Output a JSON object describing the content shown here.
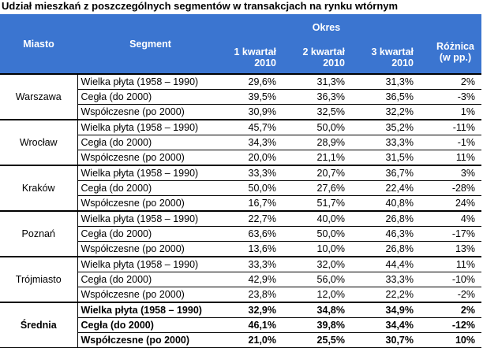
{
  "title": "Udział mieszkań z poszczególnych segmentów w transakcjach na rynku wtórnym",
  "header": {
    "miasto": "Miasto",
    "segment": "Segment",
    "okres": "Okres",
    "q1": [
      "1 kwartał",
      "2010"
    ],
    "q2": [
      "2 kwartał",
      "2010"
    ],
    "q3": [
      "3 kwartał",
      "2010"
    ],
    "roznica": [
      "Różnica",
      "(w pp.)"
    ]
  },
  "groups": [
    {
      "city": "Warszawa",
      "rows": [
        {
          "segment": "Wielka płyta (1958 – 1990)",
          "q1": "29,6%",
          "q2": "31,3%",
          "q3": "31,3%",
          "diff": "2%"
        },
        {
          "segment": "Cegła (do 2000)",
          "q1": "39,5%",
          "q2": "36,3%",
          "q3": "36,5%",
          "diff": "-3%"
        },
        {
          "segment": "Współczesne (po 2000)",
          "q1": "30,9%",
          "q2": "32,5%",
          "q3": "32,2%",
          "diff": "1%"
        }
      ]
    },
    {
      "city": "Wrocław",
      "rows": [
        {
          "segment": "Wielka płyta (1958 – 1990)",
          "q1": "45,7%",
          "q2": "50,0%",
          "q3": "35,2%",
          "diff": "-11%"
        },
        {
          "segment": "Cegła (do 2000)",
          "q1": "34,3%",
          "q2": "28,9%",
          "q3": "33,3%",
          "diff": "-1%"
        },
        {
          "segment": "Współczesne (po 2000)",
          "q1": "20,0%",
          "q2": "21,1%",
          "q3": "31,5%",
          "diff": "11%"
        }
      ]
    },
    {
      "city": "Kraków",
      "rows": [
        {
          "segment": "Wielka płyta (1958 – 1990)",
          "q1": "33,3%",
          "q2": "20,7%",
          "q3": "36,7%",
          "diff": "3%"
        },
        {
          "segment": "Cegła (do 2000)",
          "q1": "50,0%",
          "q2": "27,6%",
          "q3": "22,4%",
          "diff": "-28%"
        },
        {
          "segment": "Współczesne (po 2000)",
          "q1": "16,7%",
          "q2": "51,7%",
          "q3": "40,8%",
          "diff": "24%"
        }
      ]
    },
    {
      "city": "Poznań",
      "rows": [
        {
          "segment": "Wielka płyta (1958 – 1990)",
          "q1": "22,7%",
          "q2": "40,0%",
          "q3": "26,8%",
          "diff": "4%"
        },
        {
          "segment": "Cegła (do 2000)",
          "q1": "63,6%",
          "q2": "50,0%",
          "q3": "46,3%",
          "diff": "-17%"
        },
        {
          "segment": "Współczesne (po 2000)",
          "q1": "13,6%",
          "q2": "10,0%",
          "q3": "26,8%",
          "diff": "13%"
        }
      ]
    },
    {
      "city": "Trójmiasto",
      "rows": [
        {
          "segment": "Wielka płyta (1958 – 1990)",
          "q1": "33,3%",
          "q2": "32,0%",
          "q3": "44,4%",
          "diff": "11%"
        },
        {
          "segment": "Cegła (do 2000)",
          "q1": "42,9%",
          "q2": "56,0%",
          "q3": "33,3%",
          "diff": "-10%"
        },
        {
          "segment": "Współczesne (po 2000)",
          "q1": "23,8%",
          "q2": "12,0%",
          "q3": "22,2%",
          "diff": "-2%"
        }
      ]
    },
    {
      "city": "Średnia",
      "rows": [
        {
          "segment": "Wielka płyta (1958 – 1990)",
          "q1": "32,9%",
          "q2": "34,8%",
          "q3": "34,9%",
          "diff": "2%"
        },
        {
          "segment": "Cegła (do 2000)",
          "q1": "46,1%",
          "q2": "39,8%",
          "q3": "34,4%",
          "diff": "-12%"
        },
        {
          "segment": "Współczesne (po 2000)",
          "q1": "21,0%",
          "q2": "25,5%",
          "q3": "30,7%",
          "diff": "10%"
        }
      ]
    }
  ]
}
